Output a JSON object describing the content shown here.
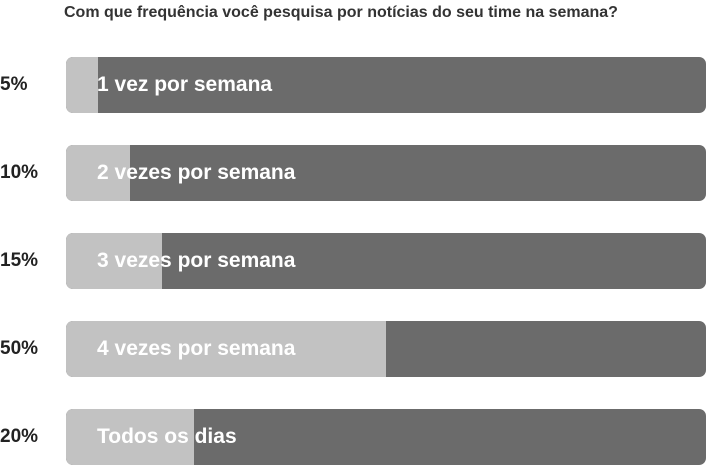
{
  "chart_data": {
    "type": "bar",
    "orientation": "horizontal",
    "title": "Com que frequência você pesquisa por notícias do seu time na semana?",
    "categories": [
      "1 vez por semana",
      "2 vezes por semana",
      "3 vezes por semana",
      "4 vezes por semana",
      "Todos os dias"
    ],
    "values": [
      5,
      10,
      15,
      50,
      20
    ],
    "value_labels": [
      "5%",
      "10%",
      "15%",
      "50%",
      "20%"
    ],
    "xlim": [
      0,
      100
    ],
    "unit": "%",
    "grid": false,
    "legend": "none"
  },
  "colors": {
    "fill": "#c2c2c2",
    "track": "#6b6b6b",
    "label": "#ffffff",
    "value_text": "#222222"
  }
}
